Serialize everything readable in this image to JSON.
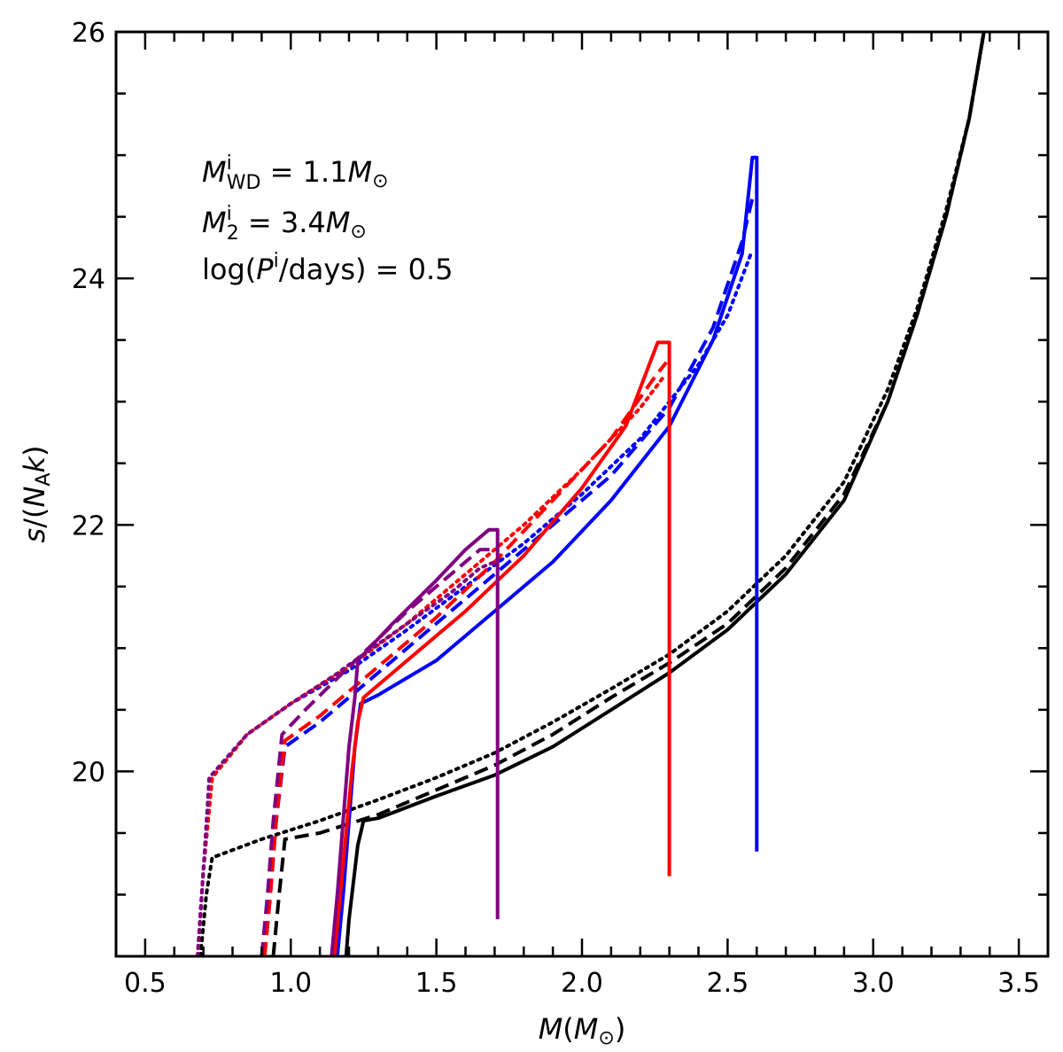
{
  "chart_data": {
    "type": "line",
    "xlabel": "M(M_⊙)",
    "ylabel": "s/(N_A k)",
    "xlim": [
      0.4,
      3.6
    ],
    "ylim": [
      18.5,
      26.0
    ],
    "x_major_ticks": [
      0.5,
      1.0,
      1.5,
      2.0,
      2.5,
      3.0,
      3.5
    ],
    "x_tick_labels": [
      "0.5",
      "1.0",
      "1.5",
      "2.0",
      "2.5",
      "3.0",
      "3.5"
    ],
    "y_major_ticks": [
      20,
      22,
      24,
      26
    ],
    "y_tick_labels": [
      "20",
      "22",
      "24",
      "26"
    ],
    "x_minor_step": 0.1,
    "y_minor_step": 0.5,
    "grid": false,
    "annotations": [
      {
        "main": "M",
        "sup": "i",
        "sub": "WD",
        "rest": " = 1.1M",
        "tail_sub": "⊙"
      },
      {
        "main": "M",
        "sup": "i",
        "sub": "2",
        "rest": " = 3.4M",
        "tail_sub": "⊙"
      },
      {
        "prefix": "log(P",
        "sup": "i",
        "rest": "/days) = 0.5"
      }
    ],
    "series": [
      {
        "color": "#000000",
        "style": "solid",
        "points": [
          [
            1.19,
            18.5
          ],
          [
            1.2,
            18.8
          ],
          [
            1.21,
            19.0
          ],
          [
            1.22,
            19.2
          ],
          [
            1.23,
            19.4
          ],
          [
            1.25,
            19.6
          ],
          [
            1.3,
            19.62
          ],
          [
            1.5,
            19.8
          ],
          [
            1.7,
            19.97
          ],
          [
            1.9,
            20.2
          ],
          [
            2.1,
            20.5
          ],
          [
            2.3,
            20.8
          ],
          [
            2.5,
            21.15
          ],
          [
            2.7,
            21.6
          ],
          [
            2.9,
            22.2
          ],
          [
            3.05,
            23.0
          ],
          [
            3.15,
            23.7
          ],
          [
            3.25,
            24.5
          ],
          [
            3.33,
            25.3
          ],
          [
            3.38,
            26.0
          ]
        ]
      },
      {
        "color": "#000000",
        "style": "dashed",
        "points": [
          [
            0.94,
            18.5
          ],
          [
            0.96,
            19.0
          ],
          [
            0.98,
            19.45
          ],
          [
            1.1,
            19.5
          ],
          [
            1.3,
            19.65
          ],
          [
            1.5,
            19.85
          ],
          [
            1.7,
            20.05
          ],
          [
            1.9,
            20.3
          ],
          [
            2.1,
            20.6
          ],
          [
            2.3,
            20.88
          ],
          [
            2.5,
            21.2
          ],
          [
            2.7,
            21.65
          ],
          [
            2.9,
            22.25
          ],
          [
            3.05,
            23.0
          ],
          [
            3.15,
            23.7
          ],
          [
            3.25,
            24.5
          ],
          [
            3.33,
            25.3
          ],
          [
            3.38,
            26.0
          ]
        ]
      },
      {
        "color": "#000000",
        "style": "dotted",
        "points": [
          [
            0.69,
            18.5
          ],
          [
            0.71,
            19.0
          ],
          [
            0.73,
            19.3
          ],
          [
            0.9,
            19.45
          ],
          [
            1.1,
            19.6
          ],
          [
            1.3,
            19.77
          ],
          [
            1.5,
            19.95
          ],
          [
            1.7,
            20.15
          ],
          [
            1.9,
            20.4
          ],
          [
            2.1,
            20.67
          ],
          [
            2.3,
            20.95
          ],
          [
            2.5,
            21.3
          ],
          [
            2.7,
            21.75
          ],
          [
            2.9,
            22.35
          ],
          [
            3.05,
            23.1
          ],
          [
            3.15,
            23.75
          ],
          [
            3.25,
            24.55
          ],
          [
            3.33,
            25.3
          ],
          [
            3.38,
            26.0
          ]
        ]
      },
      {
        "color": "#0000ff",
        "style": "solid",
        "points": [
          [
            1.16,
            18.5
          ],
          [
            1.18,
            19.0
          ],
          [
            1.2,
            19.6
          ],
          [
            1.22,
            20.2
          ],
          [
            1.24,
            20.55
          ],
          [
            1.3,
            20.62
          ],
          [
            1.5,
            20.9
          ],
          [
            1.7,
            21.3
          ],
          [
            1.9,
            21.7
          ],
          [
            2.1,
            22.2
          ],
          [
            2.3,
            22.8
          ],
          [
            2.45,
            23.5
          ],
          [
            2.55,
            24.2
          ],
          [
            2.585,
            24.98
          ],
          [
            2.6,
            24.98
          ],
          [
            2.6,
            19.35
          ]
        ]
      },
      {
        "color": "#0000ff",
        "style": "dashed",
        "points": [
          [
            0.91,
            18.5
          ],
          [
            0.93,
            19.0
          ],
          [
            0.95,
            19.6
          ],
          [
            0.98,
            20.2
          ],
          [
            1.1,
            20.4
          ],
          [
            1.3,
            20.8
          ],
          [
            1.5,
            21.2
          ],
          [
            1.7,
            21.6
          ],
          [
            1.9,
            22.0
          ],
          [
            2.1,
            22.4
          ],
          [
            2.3,
            22.95
          ],
          [
            2.45,
            23.6
          ],
          [
            2.55,
            24.3
          ],
          [
            2.59,
            24.7
          ]
        ]
      },
      {
        "color": "#0000ff",
        "style": "dotted",
        "points": [
          [
            0.68,
            18.5
          ],
          [
            0.7,
            19.2
          ],
          [
            0.73,
            19.95
          ],
          [
            0.85,
            20.3
          ],
          [
            1.0,
            20.55
          ],
          [
            1.2,
            20.82
          ],
          [
            1.4,
            21.15
          ],
          [
            1.6,
            21.5
          ],
          [
            1.8,
            21.85
          ],
          [
            2.0,
            22.25
          ],
          [
            2.2,
            22.7
          ],
          [
            2.4,
            23.3
          ],
          [
            2.5,
            23.7
          ],
          [
            2.58,
            24.2
          ]
        ]
      },
      {
        "color": "#ff0000",
        "style": "solid",
        "points": [
          [
            1.15,
            18.5
          ],
          [
            1.17,
            19.0
          ],
          [
            1.19,
            19.5
          ],
          [
            1.21,
            20.0
          ],
          [
            1.23,
            20.4
          ],
          [
            1.25,
            20.6
          ],
          [
            1.4,
            20.9
          ],
          [
            1.6,
            21.3
          ],
          [
            1.8,
            21.75
          ],
          [
            2.0,
            22.3
          ],
          [
            2.15,
            22.8
          ],
          [
            2.26,
            23.48
          ],
          [
            2.3,
            23.48
          ],
          [
            2.3,
            19.15
          ]
        ]
      },
      {
        "color": "#ff0000",
        "style": "dashed",
        "points": [
          [
            0.91,
            18.5
          ],
          [
            0.93,
            19.0
          ],
          [
            0.95,
            19.6
          ],
          [
            0.98,
            20.25
          ],
          [
            1.1,
            20.45
          ],
          [
            1.3,
            20.85
          ],
          [
            1.5,
            21.25
          ],
          [
            1.7,
            21.7
          ],
          [
            1.9,
            22.2
          ],
          [
            2.1,
            22.7
          ],
          [
            2.25,
            23.2
          ],
          [
            2.29,
            23.32
          ]
        ]
      },
      {
        "color": "#ff0000",
        "style": "dotted",
        "points": [
          [
            0.68,
            18.5
          ],
          [
            0.7,
            19.2
          ],
          [
            0.73,
            19.95
          ],
          [
            0.85,
            20.3
          ],
          [
            1.0,
            20.55
          ],
          [
            1.2,
            20.85
          ],
          [
            1.4,
            21.2
          ],
          [
            1.6,
            21.6
          ],
          [
            1.8,
            22.0
          ],
          [
            2.0,
            22.45
          ],
          [
            2.2,
            22.95
          ],
          [
            2.28,
            23.2
          ]
        ]
      },
      {
        "color": "#800080",
        "style": "solid",
        "points": [
          [
            1.14,
            18.5
          ],
          [
            1.16,
            19.0
          ],
          [
            1.18,
            19.6
          ],
          [
            1.2,
            20.2
          ],
          [
            1.22,
            20.6
          ],
          [
            1.23,
            20.9
          ],
          [
            1.35,
            21.2
          ],
          [
            1.5,
            21.55
          ],
          [
            1.6,
            21.8
          ],
          [
            1.68,
            21.96
          ],
          [
            1.71,
            21.96
          ],
          [
            1.71,
            18.8
          ]
        ]
      },
      {
        "color": "#800080",
        "style": "dashed",
        "points": [
          [
            0.9,
            18.5
          ],
          [
            0.92,
            19.0
          ],
          [
            0.94,
            19.6
          ],
          [
            0.97,
            20.3
          ],
          [
            1.05,
            20.5
          ],
          [
            1.2,
            20.85
          ],
          [
            1.4,
            21.3
          ],
          [
            1.55,
            21.6
          ],
          [
            1.65,
            21.8
          ],
          [
            1.7,
            21.8
          ]
        ]
      },
      {
        "color": "#800080",
        "style": "dotted",
        "points": [
          [
            0.68,
            18.5
          ],
          [
            0.7,
            19.2
          ],
          [
            0.72,
            19.95
          ],
          [
            0.85,
            20.3
          ],
          [
            1.0,
            20.55
          ],
          [
            1.15,
            20.78
          ],
          [
            1.25,
            20.95
          ],
          [
            1.4,
            21.2
          ],
          [
            1.55,
            21.45
          ],
          [
            1.65,
            21.65
          ],
          [
            1.7,
            21.7
          ]
        ]
      }
    ]
  }
}
